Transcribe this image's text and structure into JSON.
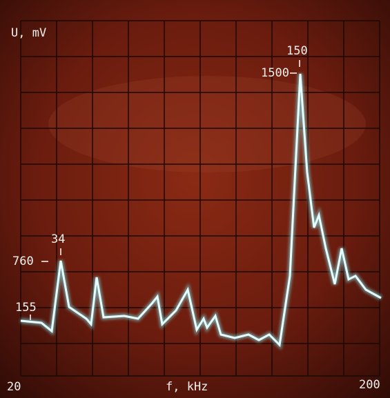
{
  "chart_data": {
    "type": "line",
    "x_label": "f, kHz",
    "y_label": "U, mV",
    "xlim": [
      20,
      200
    ],
    "annotations": [
      {
        "x": 20,
        "value": 155
      },
      {
        "x": 34,
        "value": 760
      },
      {
        "x": 150,
        "value": 1500
      }
    ]
  }
}
